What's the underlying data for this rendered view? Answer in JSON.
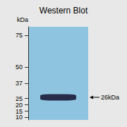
{
  "chart_data": {
    "type": "blot",
    "title": "Western Blot",
    "ylabel": "kDa",
    "categories": [
      null
    ],
    "values": [
      26
    ],
    "color": "#1c1c3a",
    "annotation": "26kDa",
    "ylim": [
      8,
      82
    ],
    "yticks": [
      75,
      50,
      37,
      25,
      20,
      15,
      10
    ],
    "grid": false
  }
}
